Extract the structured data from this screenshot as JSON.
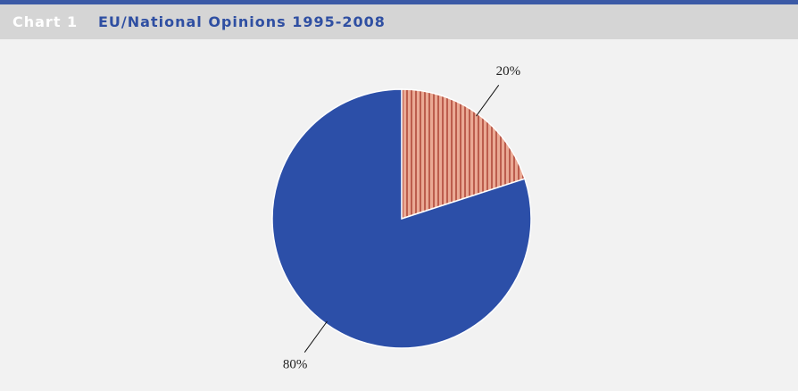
{
  "chart_data": {
    "type": "pie",
    "chart_label": "Chart 1",
    "title": "EU/National Opinions 1995-2008",
    "values": [
      20,
      80
    ],
    "value_labels": [
      "20%",
      "80%"
    ],
    "colors": [
      "#e8a08e",
      "#2c4fa8"
    ],
    "patterns": [
      "vertical-stripes",
      "solid"
    ],
    "start_angle": 0,
    "direction": "clockwise"
  }
}
